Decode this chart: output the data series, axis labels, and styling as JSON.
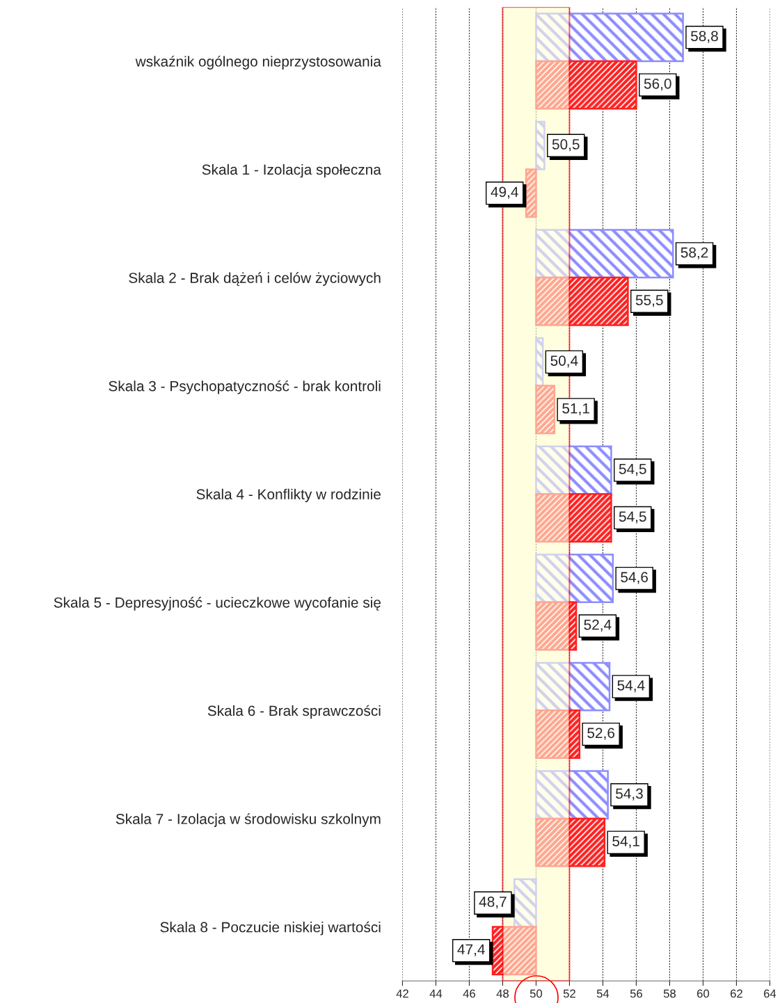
{
  "chart_data": {
    "type": "bar",
    "orientation": "horizontal",
    "categories": [
      "wskaźnik ogólnego nieprzystosowania",
      "Skala 1 - Izolacja społeczna",
      "Skala 2 - Brak dążeń i celów życiowych",
      "Skala 3 - Psychopatyczność - brak kontroli",
      "Skala 4 - Konflikty w rodzinie",
      "Skala 5 - Depresyjność - ucieczkowe wycofanie się",
      "Skala 6 - Brak sprawczości",
      "Skala 7 - Izolacja w środowisku szkolnym",
      "Skala 8 - Poczucie niskiej wartości"
    ],
    "series": [
      {
        "color": "#8c8cff",
        "base": [
          50,
          50,
          50,
          50,
          50,
          50,
          50,
          50,
          50
        ],
        "values": [
          8.8,
          0.5,
          8.2,
          0.4,
          4.5,
          4.6,
          4.4,
          4.3,
          -1.3
        ],
        "value_labels": [
          "58,8",
          "50,5",
          "58,2",
          "50,4",
          "54,5",
          "54,6",
          "54,4",
          "54,3",
          "48,7"
        ]
      },
      {
        "color": "#ff2020",
        "base": [
          50,
          50,
          50,
          50,
          50,
          50,
          50,
          50,
          50
        ],
        "values": [
          6.0,
          -0.6,
          5.5,
          1.1,
          4.5,
          2.4,
          2.6,
          4.1,
          -2.6
        ],
        "value_labels": [
          "56,0",
          "49,4",
          "55,5",
          "51,1",
          "54,5",
          "52,4",
          "52,6",
          "54,1",
          "47,4"
        ]
      }
    ],
    "xlim": [
      42,
      64
    ],
    "xticks": [
      42,
      44,
      46,
      48,
      50,
      52,
      54,
      56,
      58,
      60,
      62,
      64
    ],
    "grid": "x",
    "bands": [
      {
        "axis": "x",
        "from": 48,
        "to": 52,
        "color": "#ffffe0"
      }
    ]
  }
}
